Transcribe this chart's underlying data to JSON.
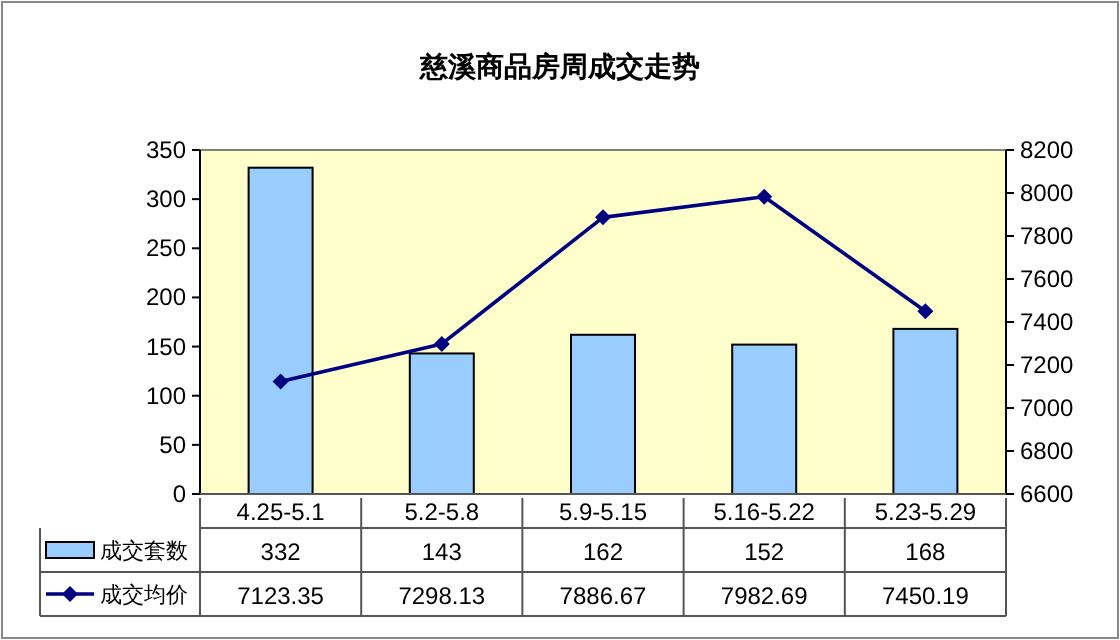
{
  "chart_data": {
    "type": "bar",
    "title": "慈溪商品房周成交走势",
    "categories": [
      "4.25-5.1",
      "5.2-5.8",
      "5.9-5.15",
      "5.16-5.22",
      "5.23-5.29"
    ],
    "series": [
      {
        "name": "成交套数",
        "color": "#99ccff",
        "values": [
          332,
          143,
          162,
          152,
          168
        ]
      },
      {
        "name": "成交均价",
        "type": "line",
        "axis": "y2",
        "color": "#000080",
        "marker": "diamond",
        "values": [
          7123.35,
          7298.13,
          7886.67,
          7982.69,
          7450.19
        ]
      }
    ],
    "ylim": [
      0,
      350
    ],
    "yticks": [
      0,
      50,
      100,
      150,
      200,
      250,
      300,
      350
    ],
    "y2lim": [
      6600,
      8200
    ],
    "y2ticks": [
      6600,
      6800,
      7000,
      7200,
      7400,
      7600,
      7800,
      8000,
      8200
    ],
    "data_labels": true,
    "legend": "bottom left",
    "grid": false
  }
}
